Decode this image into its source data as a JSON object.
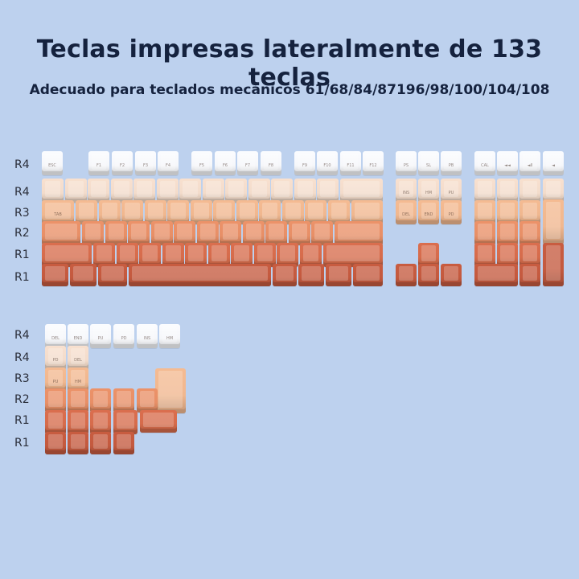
{
  "title": "Teclas impresas lateralmente de 133 teclas",
  "subtitle": "Adecuado para teclados mecánicos 61/68/84/87196/98/100/104/108",
  "row_labels_top": [
    "R4",
    "R4",
    "R3",
    "R2",
    "R1",
    "R1"
  ],
  "row_labels_bottom": [
    "R4",
    "R4",
    "R3",
    "R2",
    "R1",
    "R1"
  ],
  "colors": {
    "background": "#bdd1ee",
    "gradient": [
      "#f6f7fa",
      "#f3dccb",
      "#f0b78f",
      "#e78f67",
      "#d66c4c",
      "#c45a3f"
    ]
  },
  "legends": {
    "esc": "ESC",
    "f_keys": [
      "F1",
      "F2",
      "F3",
      "F4",
      "F5",
      "F6",
      "F7",
      "F8",
      "F9",
      "F10",
      "F11",
      "F12"
    ],
    "print_row": [
      "PS",
      "SL",
      "PB"
    ],
    "calc_row": [
      "CAL",
      "◄◄",
      "◄II",
      "◄"
    ],
    "nav1": [
      "INS",
      "HM",
      "PU"
    ],
    "nav2": [
      "DEL",
      "END",
      "PD"
    ],
    "tab": "TAB",
    "extra_top": [
      "DEL",
      "END",
      "PU",
      "PD",
      "INS",
      "HM"
    ],
    "extra_mid": [
      "PD",
      "DEL",
      "PU",
      "HM"
    ]
  }
}
